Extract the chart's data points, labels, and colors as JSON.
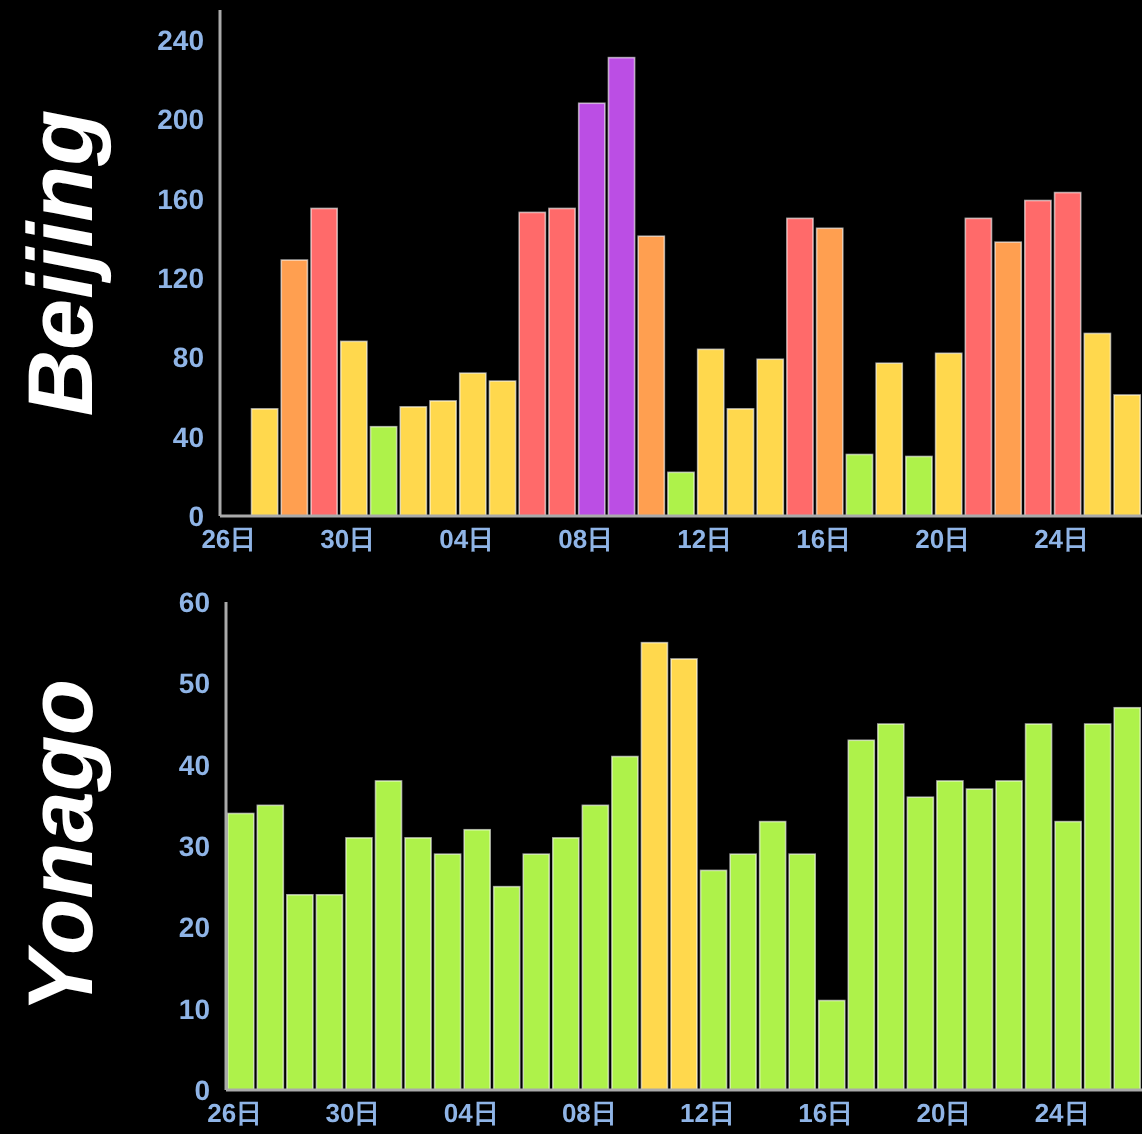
{
  "chart_data": [
    {
      "type": "bar",
      "ylabel": "Beijing",
      "categories": [
        "26日",
        null,
        null,
        null,
        "30日",
        null,
        null,
        null,
        "04日",
        null,
        null,
        null,
        "08日",
        null,
        null,
        null,
        "12日",
        null,
        null,
        null,
        "16日",
        null,
        null,
        null,
        "20日",
        null,
        null,
        null,
        "24日",
        null,
        null
      ],
      "values": [
        null,
        54,
        129,
        155,
        88,
        45,
        55,
        58,
        72,
        68,
        153,
        155,
        208,
        231,
        141,
        22,
        84,
        54,
        79,
        150,
        145,
        31,
        77,
        30,
        82,
        150,
        138,
        159,
        163,
        92,
        61
      ],
      "colors": [
        null,
        "#ffd84d",
        "#ff9f50",
        "#ff6a6a",
        "#ffd84d",
        "#aef24a",
        "#ffd84d",
        "#ffd84d",
        "#ffd84d",
        "#ffd84d",
        "#ff6a6a",
        "#ff6a6a",
        "#bb4ee4",
        "#bb4ee4",
        "#ff9f50",
        "#aef24a",
        "#ffd84d",
        "#ffd84d",
        "#ffd84d",
        "#ff6a6a",
        "#ff9f50",
        "#aef24a",
        "#ffd84d",
        "#aef24a",
        "#ffd84d",
        "#ff6a6a",
        "#ff9f50",
        "#ff6a6a",
        "#ff6a6a",
        "#ffd84d",
        "#ffd84d"
      ],
      "ylim": [
        0,
        255
      ],
      "yticks": [
        0,
        40,
        80,
        120,
        160,
        200,
        240
      ]
    },
    {
      "type": "bar",
      "ylabel": "Yonago",
      "categories": [
        "26日",
        null,
        null,
        null,
        "30日",
        null,
        null,
        null,
        "04日",
        null,
        null,
        null,
        "08日",
        null,
        null,
        null,
        "12日",
        null,
        null,
        null,
        "16日",
        null,
        null,
        null,
        "20日",
        null,
        null,
        null,
        "24日",
        null,
        null
      ],
      "values": [
        34,
        35,
        24,
        24,
        31,
        38,
        31,
        29,
        32,
        25,
        29,
        31,
        35,
        41,
        55,
        53,
        27,
        29,
        33,
        29,
        11,
        43,
        45,
        36,
        38,
        37,
        38,
        45,
        33,
        45,
        47
      ],
      "colors": [
        "#aef24a",
        "#aef24a",
        "#aef24a",
        "#aef24a",
        "#aef24a",
        "#aef24a",
        "#aef24a",
        "#aef24a",
        "#aef24a",
        "#aef24a",
        "#aef24a",
        "#aef24a",
        "#aef24a",
        "#aef24a",
        "#ffd84d",
        "#ffd84d",
        "#aef24a",
        "#aef24a",
        "#aef24a",
        "#aef24a",
        "#aef24a",
        "#aef24a",
        "#aef24a",
        "#aef24a",
        "#aef24a",
        "#aef24a",
        "#aef24a",
        "#aef24a",
        "#aef24a",
        "#aef24a",
        "#aef24a"
      ],
      "ylim": [
        0,
        60
      ],
      "yticks": [
        0,
        10,
        20,
        30,
        40,
        50,
        60
      ]
    }
  ]
}
